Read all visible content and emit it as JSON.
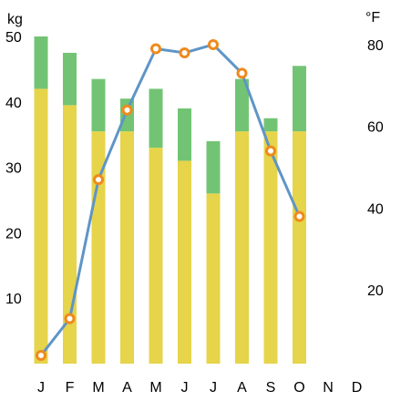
{
  "chart_data": {
    "type": "bar",
    "categories": [
      "J",
      "F",
      "M",
      "A",
      "M",
      "J",
      "J",
      "A",
      "S",
      "O",
      "N",
      "D"
    ],
    "left_axis": {
      "unit": "kg",
      "ylim": [
        0,
        50
      ],
      "ticks": [
        10,
        20,
        30,
        40,
        50
      ]
    },
    "right_axis": {
      "unit": "°F",
      "ylim": [
        2,
        82
      ],
      "ticks": [
        20,
        40,
        60,
        80
      ]
    },
    "stacked_series": [
      {
        "values": [
          42,
          39.5,
          35.5,
          35.5,
          33,
          31,
          26,
          35.5,
          35.5,
          35.5,
          null,
          null
        ],
        "color": "#e6d44a"
      },
      {
        "values": [
          8,
          8,
          8,
          5,
          9,
          8,
          8,
          8,
          2,
          10,
          null,
          null
        ],
        "color": "#72c474"
      }
    ],
    "line_series": {
      "axis": "right",
      "values": [
        4,
        13,
        47,
        64,
        79,
        78,
        80,
        73,
        54,
        38,
        null,
        null
      ],
      "color": "#5e95c7",
      "marker_color": "#ef8a1c"
    },
    "grid": false,
    "legend": "none"
  }
}
